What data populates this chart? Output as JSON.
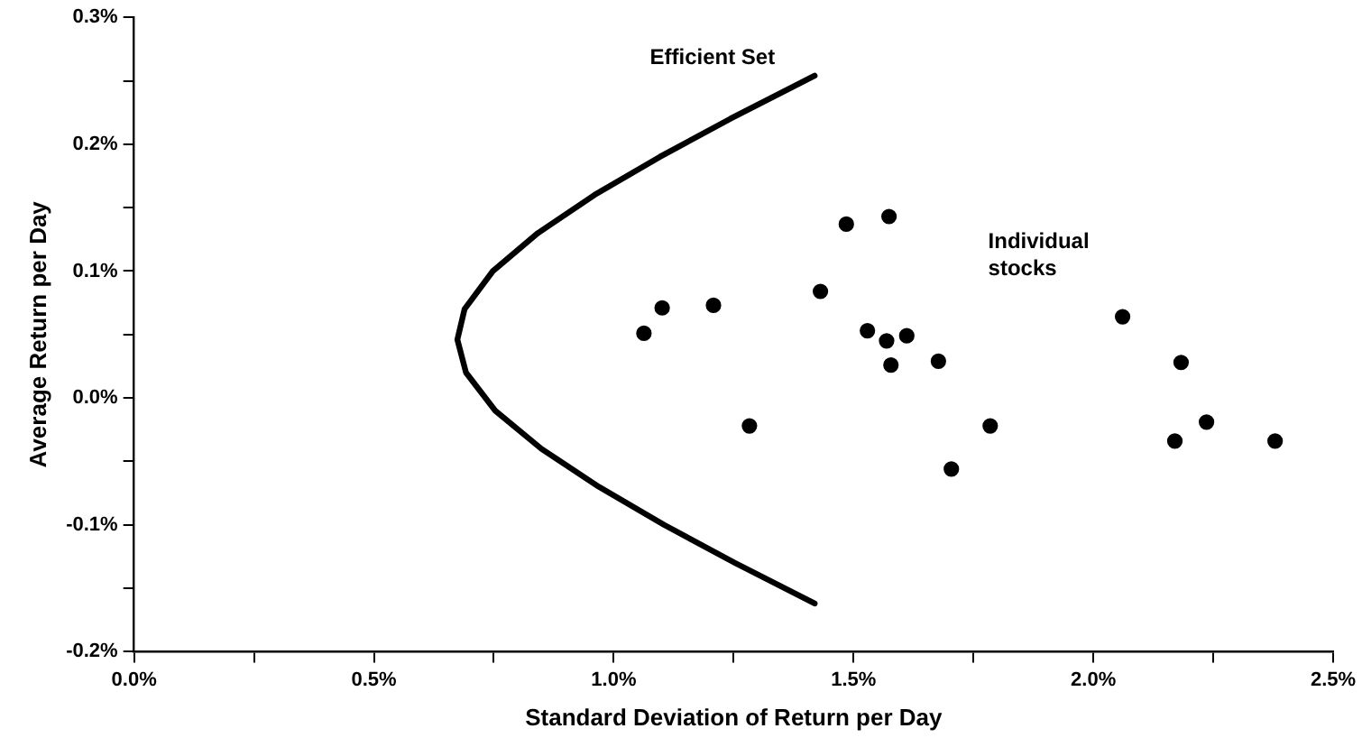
{
  "chart_data": {
    "type": "scatter",
    "xlabel": "Standard Deviation of Return per Day",
    "ylabel": "Average Return per Day",
    "xlim": [
      0,
      2.5
    ],
    "ylim": [
      -0.2,
      0.3
    ],
    "xticks": [
      {
        "value": 0,
        "label": "0.0%"
      },
      {
        "value": 0.25,
        "label": null
      },
      {
        "value": 0.5,
        "label": "0.5%"
      },
      {
        "value": 0.75,
        "label": null
      },
      {
        "value": 1,
        "label": "1.0%"
      },
      {
        "value": 1.25,
        "label": null
      },
      {
        "value": 1.5,
        "label": "1.5%"
      },
      {
        "value": 1.75,
        "label": null
      },
      {
        "value": 2,
        "label": "2.0%"
      },
      {
        "value": 2.25,
        "label": null
      },
      {
        "value": 2.5,
        "label": "2.5%"
      }
    ],
    "yticks": [
      {
        "value": -0.2,
        "label": "-0.2%"
      },
      {
        "value": -0.15,
        "label": null
      },
      {
        "value": -0.1,
        "label": "-0.1%"
      },
      {
        "value": -0.05,
        "label": null
      },
      {
        "value": 0,
        "label": "0.0%"
      },
      {
        "value": 0.05,
        "label": null
      },
      {
        "value": 0.1,
        "label": "0.1%"
      },
      {
        "value": 0.15,
        "label": null
      },
      {
        "value": 0.2,
        "label": "0.2%"
      },
      {
        "value": 0.25,
        "label": null
      },
      {
        "value": 0.3,
        "label": "0.3%"
      }
    ],
    "grid": false,
    "legend": false,
    "series": [
      {
        "type": "line",
        "name": "Efficient Set",
        "marker": "none",
        "color": "#000000",
        "x": [
          1.419,
          1.243,
          1.096,
          0.96,
          0.842,
          0.748,
          0.689,
          0.674,
          0.692,
          0.753,
          0.849,
          0.969,
          1.105,
          1.253,
          1.419
        ],
        "values": [
          0.254,
          0.22,
          0.19,
          0.16,
          0.13,
          0.1,
          0.07,
          0.046,
          0.02,
          -0.01,
          -0.04,
          -0.07,
          -0.1,
          -0.13,
          -0.162
        ]
      },
      {
        "name": "Individual stocks",
        "marker": "circle",
        "color": "#000000",
        "x": [
          1.063,
          1.101,
          1.208,
          1.283,
          1.431,
          1.485,
          1.574,
          1.529,
          1.569,
          1.611,
          1.578,
          1.677,
          1.785,
          1.704,
          2.061,
          2.183,
          2.17,
          2.236,
          2.379
        ],
        "values": [
          0.051,
          0.071,
          0.073,
          -0.022,
          0.084,
          0.137,
          0.143,
          0.053,
          0.045,
          0.049,
          0.026,
          0.029,
          -0.022,
          -0.056,
          0.064,
          0.028,
          -0.034,
          -0.019,
          -0.034
        ]
      }
    ]
  }
}
